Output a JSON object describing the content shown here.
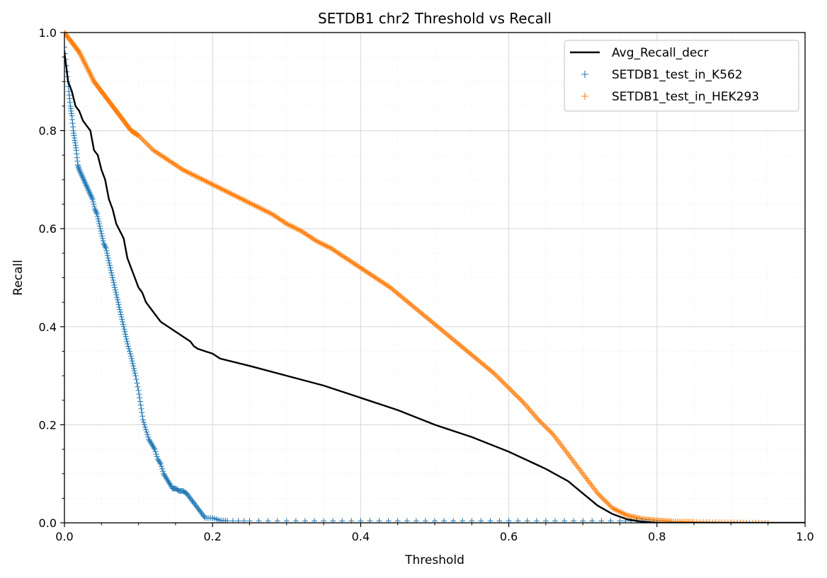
{
  "chart_data": {
    "type": "line",
    "title": "SETDB1 chr2 Threshold vs Recall",
    "xlabel": "Threshold",
    "ylabel": "Recall",
    "xlim": [
      0.0,
      1.0
    ],
    "ylim": [
      0.0,
      1.0
    ],
    "xticks": [
      "0.0",
      "0.2",
      "0.4",
      "0.6",
      "0.8",
      "1.0"
    ],
    "yticks": [
      "0.0",
      "0.2",
      "0.4",
      "0.6",
      "0.8",
      "1.0"
    ],
    "grid": true,
    "legend_position": "top-right",
    "series": [
      {
        "name": "Avg_Recall_decr",
        "style": "line",
        "color": "#000000",
        "x": [
          0.0,
          0.005,
          0.01,
          0.015,
          0.02,
          0.025,
          0.03,
          0.035,
          0.04,
          0.045,
          0.05,
          0.055,
          0.06,
          0.065,
          0.07,
          0.08,
          0.085,
          0.09,
          0.095,
          0.1,
          0.105,
          0.11,
          0.12,
          0.13,
          0.14,
          0.15,
          0.17,
          0.175,
          0.18,
          0.19,
          0.2,
          0.21,
          0.25,
          0.3,
          0.35,
          0.4,
          0.45,
          0.5,
          0.55,
          0.6,
          0.65,
          0.68,
          0.7,
          0.72,
          0.74,
          0.76,
          0.78,
          0.8,
          0.85,
          0.9,
          1.0
        ],
        "y": [
          0.96,
          0.9,
          0.88,
          0.85,
          0.84,
          0.82,
          0.81,
          0.8,
          0.76,
          0.75,
          0.72,
          0.7,
          0.66,
          0.64,
          0.61,
          0.58,
          0.54,
          0.52,
          0.5,
          0.48,
          0.47,
          0.45,
          0.43,
          0.41,
          0.4,
          0.39,
          0.37,
          0.36,
          0.355,
          0.35,
          0.345,
          0.335,
          0.32,
          0.3,
          0.28,
          0.255,
          0.23,
          0.2,
          0.175,
          0.145,
          0.11,
          0.085,
          0.06,
          0.035,
          0.018,
          0.007,
          0.002,
          0.0,
          0.0,
          0.0,
          0.0
        ]
      },
      {
        "name": "SETDB1_test_in_K562",
        "style": "scatter",
        "marker": "+",
        "color": "#1f77b4",
        "x": [
          0.0,
          0.003,
          0.006,
          0.008,
          0.01,
          0.012,
          0.014,
          0.016,
          0.018,
          0.02,
          0.023,
          0.026,
          0.029,
          0.032,
          0.035,
          0.038,
          0.041,
          0.044,
          0.047,
          0.05,
          0.053,
          0.056,
          0.059,
          0.062,
          0.065,
          0.068,
          0.071,
          0.074,
          0.077,
          0.08,
          0.083,
          0.086,
          0.09,
          0.093,
          0.096,
          0.1,
          0.103,
          0.106,
          0.11,
          0.114,
          0.118,
          0.122,
          0.126,
          0.13,
          0.134,
          0.138,
          0.142,
          0.146,
          0.15,
          0.155,
          0.16,
          0.165,
          0.17,
          0.175,
          0.18,
          0.185,
          0.19,
          0.2,
          0.21,
          0.22,
          0.25,
          0.3,
          0.35,
          0.4,
          0.45,
          0.5,
          0.55,
          0.6,
          0.65,
          0.7,
          0.75,
          0.78,
          0.8
        ],
        "y": [
          0.97,
          0.92,
          0.88,
          0.85,
          0.83,
          0.8,
          0.78,
          0.76,
          0.73,
          0.72,
          0.71,
          0.7,
          0.69,
          0.68,
          0.67,
          0.66,
          0.64,
          0.63,
          0.61,
          0.59,
          0.57,
          0.56,
          0.54,
          0.52,
          0.5,
          0.48,
          0.46,
          0.44,
          0.42,
          0.4,
          0.38,
          0.36,
          0.34,
          0.32,
          0.3,
          0.27,
          0.24,
          0.21,
          0.19,
          0.17,
          0.16,
          0.15,
          0.13,
          0.12,
          0.1,
          0.09,
          0.08,
          0.07,
          0.07,
          0.065,
          0.065,
          0.06,
          0.05,
          0.04,
          0.03,
          0.02,
          0.01,
          0.01,
          0.005,
          0.004,
          0.004,
          0.004,
          0.004,
          0.004,
          0.004,
          0.004,
          0.004,
          0.004,
          0.004,
          0.004,
          0.004,
          0.004,
          0.0
        ]
      },
      {
        "name": "SETDB1_test_in_HEK293",
        "style": "scatter",
        "marker": "+",
        "color": "#ff7f0e",
        "x": [
          0.0,
          0.01,
          0.02,
          0.03,
          0.04,
          0.05,
          0.06,
          0.07,
          0.08,
          0.09,
          0.1,
          0.12,
          0.14,
          0.16,
          0.18,
          0.2,
          0.22,
          0.24,
          0.26,
          0.28,
          0.3,
          0.32,
          0.34,
          0.36,
          0.38,
          0.4,
          0.42,
          0.44,
          0.46,
          0.48,
          0.5,
          0.52,
          0.54,
          0.56,
          0.58,
          0.6,
          0.62,
          0.64,
          0.66,
          0.68,
          0.7,
          0.72,
          0.74,
          0.76,
          0.78,
          0.8,
          0.82,
          0.85,
          0.9,
          0.95
        ],
        "y": [
          1.0,
          0.98,
          0.96,
          0.93,
          0.9,
          0.88,
          0.86,
          0.84,
          0.82,
          0.8,
          0.79,
          0.76,
          0.74,
          0.72,
          0.705,
          0.69,
          0.675,
          0.66,
          0.645,
          0.63,
          0.61,
          0.595,
          0.575,
          0.56,
          0.54,
          0.52,
          0.5,
          0.48,
          0.455,
          0.43,
          0.405,
          0.38,
          0.355,
          0.33,
          0.305,
          0.275,
          0.245,
          0.21,
          0.18,
          0.14,
          0.1,
          0.06,
          0.03,
          0.015,
          0.008,
          0.005,
          0.003,
          0.002,
          0.001,
          0.0
        ]
      }
    ]
  }
}
